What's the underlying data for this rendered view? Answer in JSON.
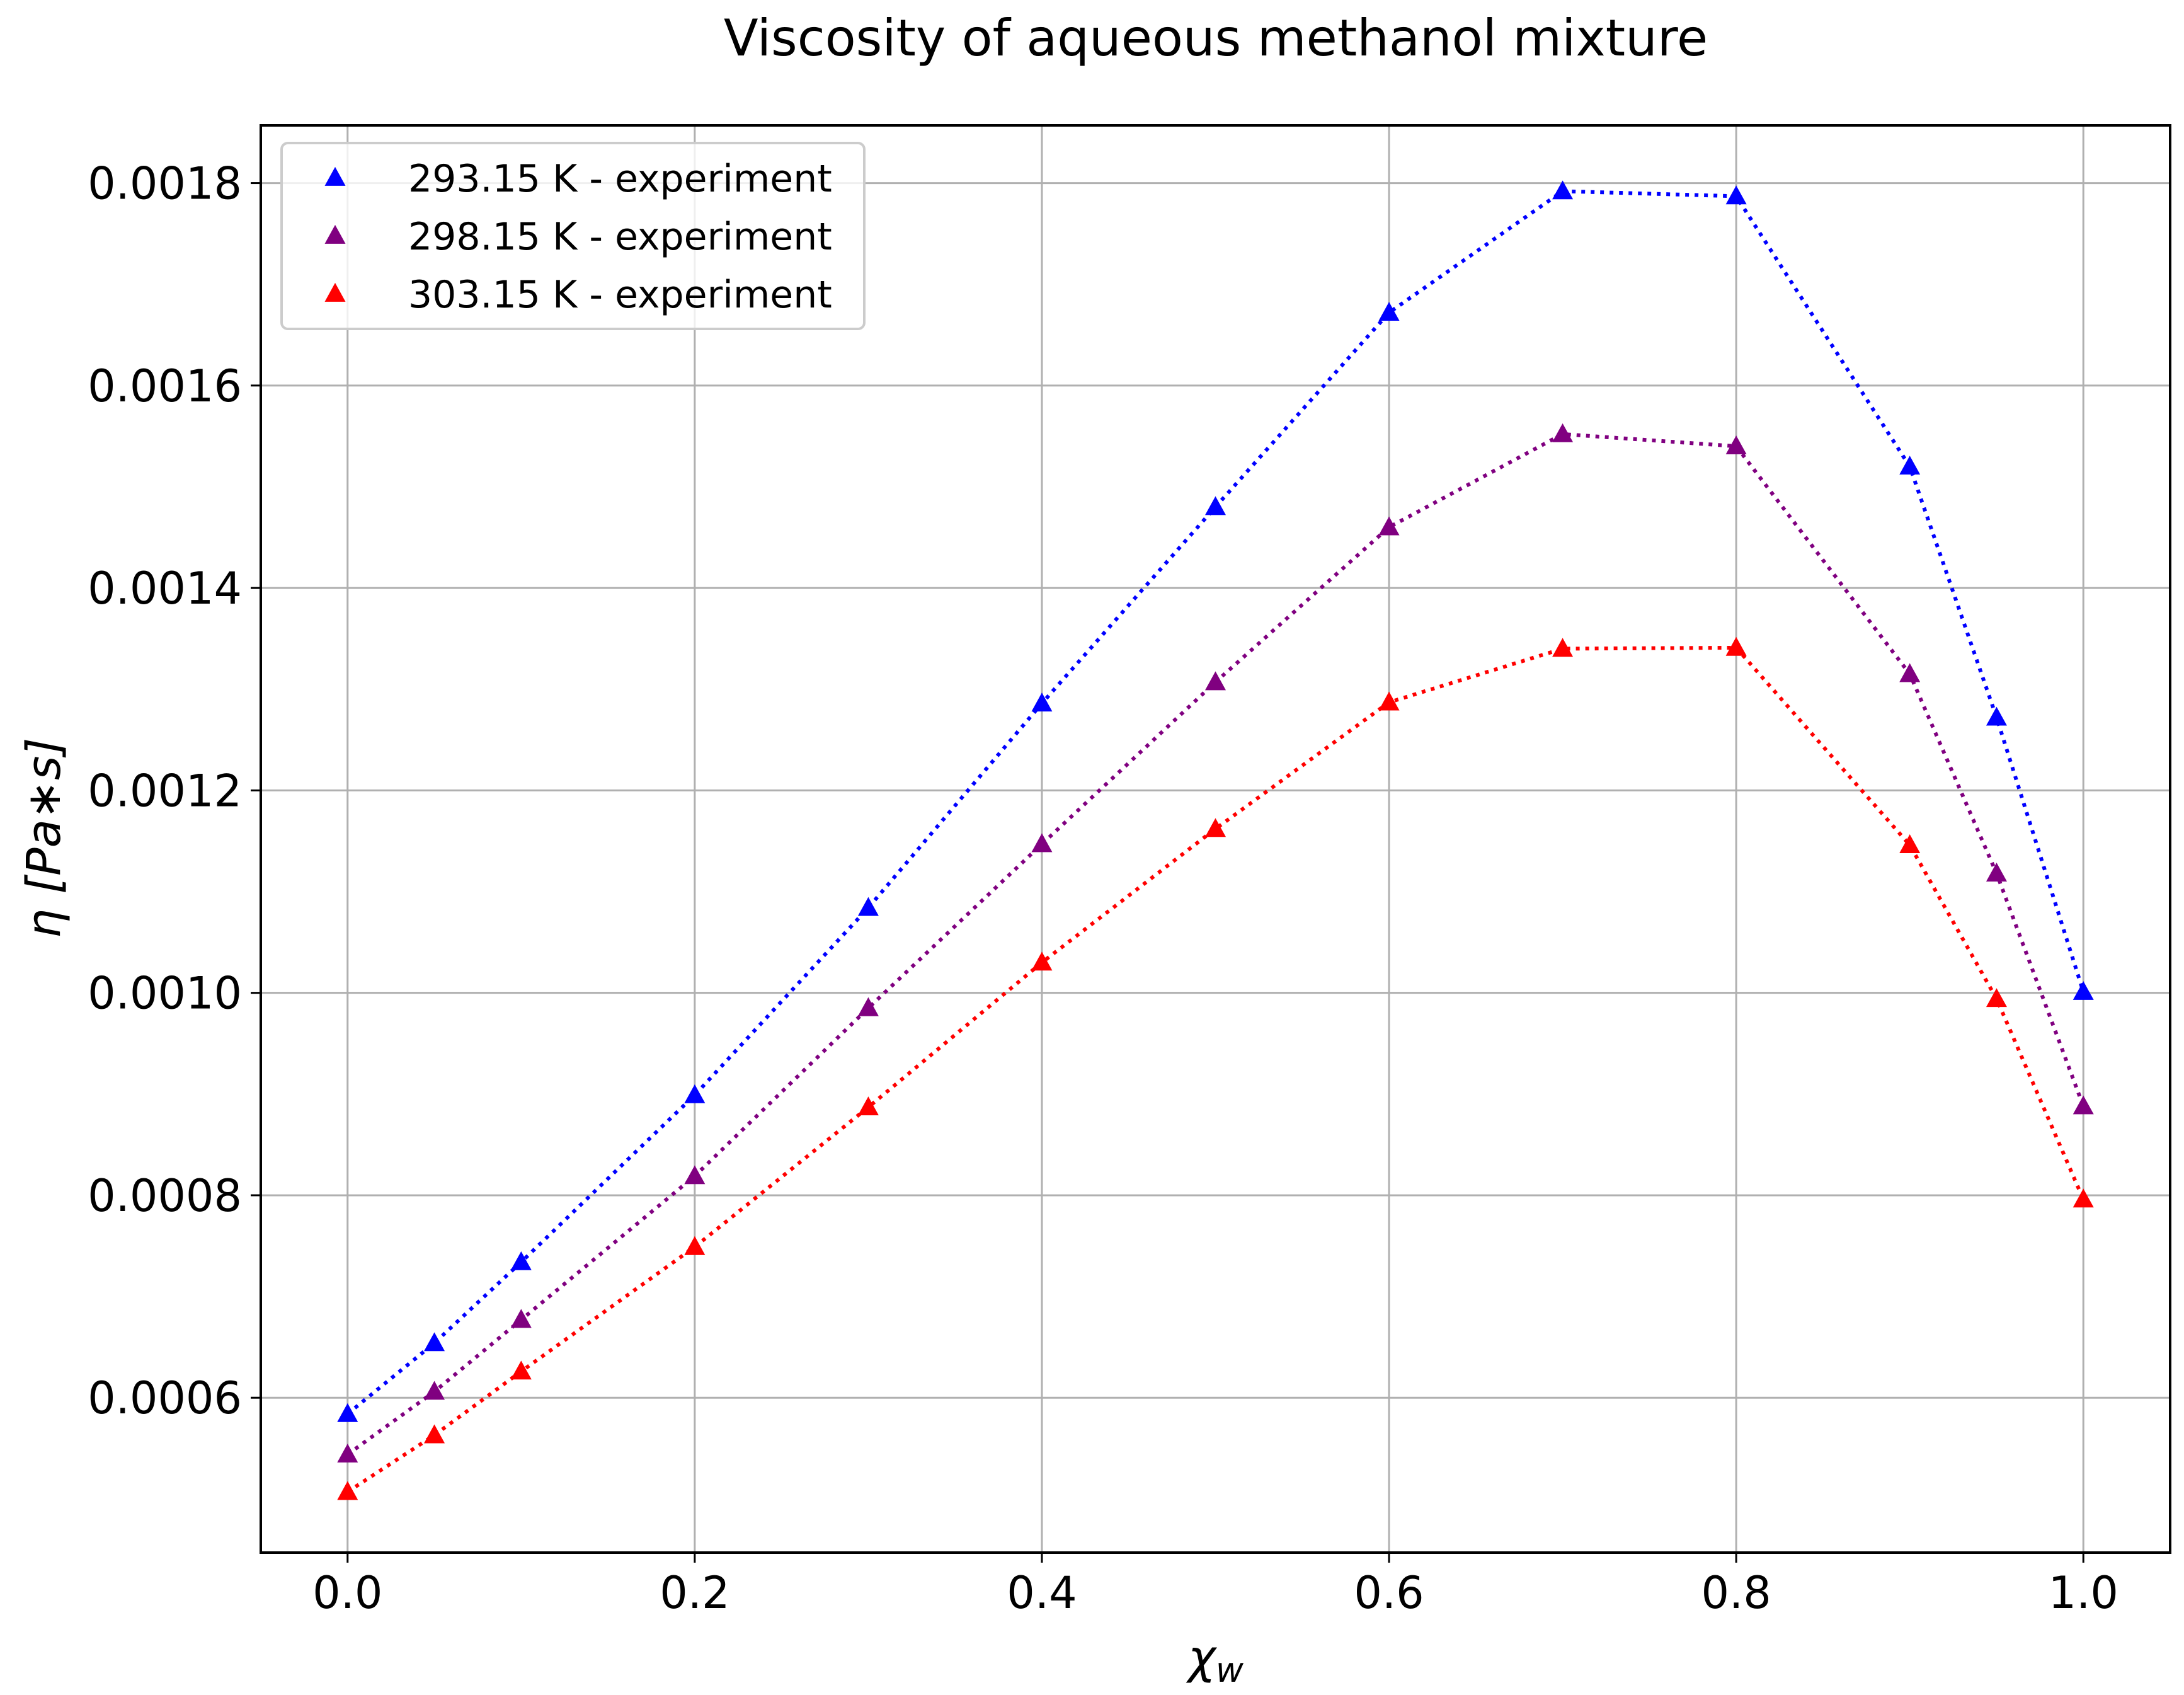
{
  "chart_data": {
    "type": "line",
    "title": "Viscosity of aqueous methanol mixture",
    "xlabel": "χ",
    "xlabel_subscript": "w",
    "ylabel": "η  [Pa∗s]",
    "xlim": [
      -0.05,
      1.05
    ],
    "ylim": [
      0.000447,
      0.001857
    ],
    "xticks": [
      0.0,
      0.2,
      0.4,
      0.6,
      0.8,
      1.0
    ],
    "xtick_labels": [
      "0.0",
      "0.2",
      "0.4",
      "0.6",
      "0.8",
      "1.0"
    ],
    "yticks": [
      0.0006,
      0.0008,
      0.001,
      0.0012,
      0.0014,
      0.0016,
      0.0018
    ],
    "ytick_labels": [
      "0.0006",
      "0.0008",
      "0.0010",
      "0.0012",
      "0.0014",
      "0.0016",
      "0.0018"
    ],
    "grid": true,
    "legend_position": "top-left",
    "x": [
      0.0,
      0.05,
      0.1,
      0.2,
      0.3,
      0.4,
      0.5,
      0.6,
      0.7,
      0.8,
      0.9,
      0.95,
      1.0
    ],
    "series": [
      {
        "name": "293.15 K - experiment",
        "color": "#0000ff",
        "marker": "triangle",
        "linestyle": "dotted",
        "values": [
          0.000584,
          0.000654,
          0.000734,
          0.000899,
          0.001084,
          0.001286,
          0.00148,
          0.001672,
          0.001792,
          0.001787,
          0.00152,
          0.001272,
          0.001001
        ]
      },
      {
        "name": "298.15 K - experiment",
        "color": "#800080",
        "marker": "triangle",
        "linestyle": "dotted",
        "values": [
          0.000544,
          0.000606,
          0.000677,
          0.000819,
          0.000985,
          0.001147,
          0.001307,
          0.00146,
          0.001552,
          0.00154,
          0.001315,
          0.001118,
          0.000888
        ]
      },
      {
        "name": "303.15 K - experiment",
        "color": "#ff0000",
        "marker": "triangle",
        "linestyle": "dotted",
        "values": [
          0.000507,
          0.000563,
          0.000626,
          0.000749,
          0.000887,
          0.00103,
          0.001162,
          0.001287,
          0.00134,
          0.001341,
          0.001146,
          0.000994,
          0.000796
        ]
      }
    ]
  }
}
